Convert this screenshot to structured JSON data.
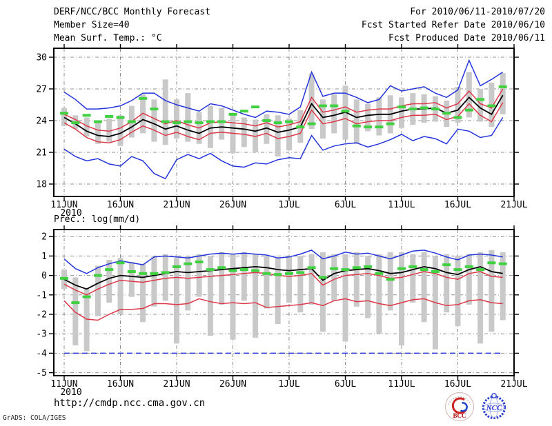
{
  "header": {
    "title": "DERF/NCC/BCC Monthly Forecast",
    "member_size": "Member Size=40",
    "for_range": "For 2010/06/11-2010/07/20",
    "fcst_started": "Fcst Started Refer Date 2010/06/10",
    "fcst_produced": "Fcst Produced Date 2010/06/11"
  },
  "footer": {
    "url": "http://cmdp.ncc.cma.gov.cn",
    "grads_credit": "GrADS: COLA/IGES",
    "logos": [
      {
        "name": "bcc-logo",
        "label": "BCC"
      },
      {
        "name": "ncc-logo",
        "label": "NCC"
      }
    ]
  },
  "chart_data": [
    {
      "name": "surface-temperature-forecast",
      "type": "line",
      "subtype": "ensemble-plume",
      "title": "Mean Surf. Temp.: °C",
      "grid": true,
      "ylim": [
        18,
        30
      ],
      "yticks": [
        18,
        21,
        24,
        27,
        30
      ],
      "x_tick_labels": [
        "11JUN",
        "16JUN",
        "21JUN",
        "26JUN",
        "1JUL",
        "6JUL",
        "11JUL",
        "16JUL",
        "21JUL"
      ],
      "year_label": "2010",
      "x_dates": [
        "06/11",
        "06/12",
        "06/13",
        "06/14",
        "06/15",
        "06/16",
        "06/17",
        "06/18",
        "06/19",
        "06/20",
        "06/21",
        "06/22",
        "06/23",
        "06/24",
        "06/25",
        "06/26",
        "06/27",
        "06/28",
        "06/29",
        "06/30",
        "07/01",
        "07/02",
        "07/03",
        "07/04",
        "07/05",
        "07/06",
        "07/07",
        "07/08",
        "07/09",
        "07/10",
        "07/11",
        "07/12",
        "07/13",
        "07/14",
        "07/15",
        "07/16",
        "07/17",
        "07/18",
        "07/19",
        "07/20"
      ],
      "bars": {
        "name": "ensemble-spread-bar",
        "color": "#c9c9c9",
        "ranges": [
          [
            23.5,
            25.2
          ],
          [
            23.2,
            24.5
          ],
          [
            22.5,
            24.3
          ],
          [
            21.8,
            24.0
          ],
          [
            22.0,
            24.2
          ],
          [
            21.6,
            24.5
          ],
          [
            22.4,
            25.4
          ],
          [
            22.8,
            26.5
          ],
          [
            22.0,
            26.0
          ],
          [
            21.7,
            27.9
          ],
          [
            22.3,
            26.0
          ],
          [
            22.0,
            26.6
          ],
          [
            21.8,
            24.8
          ],
          [
            21.4,
            25.4
          ],
          [
            22.2,
            25.2
          ],
          [
            20.9,
            24.6
          ],
          [
            21.5,
            24.3
          ],
          [
            21.0,
            24.1
          ],
          [
            21.8,
            24.6
          ],
          [
            20.6,
            24.5
          ],
          [
            21.2,
            24.2
          ],
          [
            21.9,
            25.0
          ],
          [
            23.2,
            28.4
          ],
          [
            22.3,
            26.0
          ],
          [
            22.8,
            26.5
          ],
          [
            22.2,
            27.3
          ],
          [
            21.8,
            26.0
          ],
          [
            23.0,
            25.6
          ],
          [
            22.6,
            26.2
          ],
          [
            22.8,
            26.4
          ],
          [
            23.3,
            26.2
          ],
          [
            23.6,
            26.6
          ],
          [
            23.8,
            26.5
          ],
          [
            23.9,
            26.3
          ],
          [
            23.4,
            25.9
          ],
          [
            23.8,
            27.2
          ],
          [
            24.3,
            28.6
          ],
          [
            23.9,
            27.0
          ],
          [
            23.4,
            27.6
          ],
          [
            24.6,
            28.5
          ]
        ]
      },
      "series": [
        {
          "name": "ensemble-max",
          "color": "#2334dd",
          "width": 1.5,
          "values": [
            26.7,
            26.0,
            25.1,
            25.1,
            25.2,
            25.4,
            25.9,
            26.6,
            26.6,
            25.9,
            25.5,
            25.2,
            24.9,
            25.6,
            25.4,
            25.0,
            24.6,
            24.3,
            24.9,
            24.8,
            24.6,
            25.3,
            28.6,
            26.3,
            26.6,
            26.6,
            26.2,
            25.7,
            26.0,
            27.3,
            26.8,
            27.0,
            27.2,
            26.6,
            26.2,
            26.9,
            29.7,
            27.3,
            27.9,
            28.6
          ]
        },
        {
          "name": "ensemble-min",
          "color": "#2334dd",
          "width": 1.5,
          "values": [
            21.3,
            20.6,
            20.2,
            20.4,
            19.9,
            19.7,
            20.6,
            20.2,
            19.0,
            18.5,
            20.3,
            20.8,
            20.4,
            20.9,
            20.2,
            19.7,
            19.6,
            20.0,
            19.9,
            20.3,
            20.5,
            20.4,
            22.6,
            21.2,
            21.6,
            21.8,
            21.9,
            21.5,
            21.8,
            22.2,
            22.7,
            22.1,
            22.5,
            22.3,
            21.8,
            23.2,
            23.0,
            22.4,
            22.6,
            24.3
          ]
        },
        {
          "name": "upper-spread",
          "color": "#dd3848",
          "width": 1.5,
          "values": [
            24.6,
            24.1,
            23.5,
            23.1,
            23.0,
            23.3,
            23.9,
            24.7,
            24.2,
            23.7,
            24.0,
            23.6,
            23.3,
            23.8,
            23.9,
            23.8,
            23.7,
            23.5,
            23.8,
            23.4,
            23.6,
            23.9,
            26.2,
            24.8,
            25.0,
            25.3,
            24.8,
            25.0,
            25.1,
            25.1,
            25.4,
            25.6,
            25.6,
            25.7,
            25.2,
            25.6,
            26.8,
            25.6,
            25.2,
            27.0
          ]
        },
        {
          "name": "lower-spread",
          "color": "#dd3848",
          "width": 1.5,
          "values": [
            23.8,
            23.2,
            22.4,
            22.0,
            21.9,
            22.2,
            22.9,
            23.5,
            23.1,
            22.6,
            22.9,
            22.5,
            22.2,
            22.8,
            22.9,
            22.8,
            22.7,
            22.5,
            22.8,
            22.3,
            22.5,
            22.8,
            25.0,
            23.7,
            23.9,
            24.2,
            23.7,
            23.9,
            24.0,
            24.0,
            24.3,
            24.5,
            24.5,
            24.6,
            24.1,
            24.4,
            25.6,
            24.5,
            23.9,
            25.7
          ]
        },
        {
          "name": "ensemble-mean",
          "color": "#000000",
          "width": 1.8,
          "values": [
            24.3,
            23.7,
            23.0,
            22.6,
            22.5,
            22.8,
            23.4,
            24.1,
            23.7,
            23.2,
            23.5,
            23.1,
            22.8,
            23.3,
            23.4,
            23.3,
            23.2,
            23.0,
            23.3,
            22.9,
            23.1,
            23.4,
            25.6,
            24.3,
            24.5,
            24.8,
            24.3,
            24.5,
            24.6,
            24.6,
            24.9,
            25.1,
            25.1,
            25.2,
            24.7,
            25.0,
            26.2,
            25.2,
            24.6,
            26.4
          ]
        },
        {
          "name": "observation",
          "style": "obs-dash",
          "color": "#3fd13f",
          "values": [
            24.7,
            23.8,
            24.5,
            23.9,
            24.4,
            24.3,
            23.9,
            26.1,
            25.1,
            23.9,
            23.8,
            23.9,
            23.8,
            23.9,
            23.9,
            24.6,
            24.9,
            25.3,
            24.0,
            23.8,
            23.9,
            23.4,
            23.7,
            25.4,
            25.4,
            24.9,
            23.5,
            23.4,
            23.4,
            23.7,
            25.3,
            25.1,
            25.2,
            25.1,
            24.7,
            24.3,
            25.0,
            26.0,
            25.4,
            27.2
          ]
        }
      ]
    },
    {
      "name": "precipitation-forecast",
      "type": "line",
      "subtype": "ensemble-plume",
      "title": "Prec.: log(mm/d)",
      "grid": true,
      "ylim": [
        -5,
        2
      ],
      "yticks": [
        -5,
        -4,
        -3,
        -2,
        -1,
        0,
        1,
        2
      ],
      "x_tick_labels": [
        "11JUN",
        "16JUN",
        "21JUN",
        "26JUN",
        "1JUL",
        "6JUL",
        "11JUL",
        "16JUL",
        "21JUL"
      ],
      "year_label": "2010",
      "x_dates": [
        "06/11",
        "06/12",
        "06/13",
        "06/14",
        "06/15",
        "06/16",
        "06/17",
        "06/18",
        "06/19",
        "06/20",
        "06/21",
        "06/22",
        "06/23",
        "06/24",
        "06/25",
        "06/26",
        "06/27",
        "06/28",
        "06/29",
        "06/30",
        "07/01",
        "07/02",
        "07/03",
        "07/04",
        "07/05",
        "07/06",
        "07/07",
        "07/08",
        "07/09",
        "07/10",
        "07/11",
        "07/12",
        "07/13",
        "07/14",
        "07/15",
        "07/16",
        "07/17",
        "07/18",
        "07/19",
        "07/20"
      ],
      "bars": {
        "name": "ensemble-spread-bar",
        "color": "#c9c9c9",
        "ranges": [
          [
            -0.7,
            0.3
          ],
          [
            -3.6,
            -0.1
          ],
          [
            -3.9,
            -0.7
          ],
          [
            -2.1,
            0.5
          ],
          [
            -1.4,
            0.8
          ],
          [
            -2.0,
            0.9
          ],
          [
            -1.1,
            0.7
          ],
          [
            -2.4,
            0.6
          ],
          [
            -1.6,
            1.0
          ],
          [
            -1.3,
            1.1
          ],
          [
            -3.5,
            0.9
          ],
          [
            -1.8,
            1.0
          ],
          [
            -1.1,
            1.1
          ],
          [
            -3.1,
            1.0
          ],
          [
            -1.5,
            1.2
          ],
          [
            -3.3,
            1.1
          ],
          [
            -1.3,
            1.2
          ],
          [
            -3.2,
            1.1
          ],
          [
            -1.7,
            1.0
          ],
          [
            -2.5,
            0.9
          ],
          [
            -1.4,
            1.0
          ],
          [
            -1.9,
            1.0
          ],
          [
            -1.5,
            1.1
          ],
          [
            -2.9,
            1.2
          ],
          [
            -1.3,
            1.1
          ],
          [
            -3.4,
            1.1
          ],
          [
            -1.6,
            1.2
          ],
          [
            -2.2,
            1.0
          ],
          [
            -3.0,
            1.1
          ],
          [
            -1.8,
            1.2
          ],
          [
            -3.6,
            1.2
          ],
          [
            -1.4,
            1.1
          ],
          [
            -2.4,
            1.2
          ],
          [
            -3.8,
            1.0
          ],
          [
            -1.9,
            1.1
          ],
          [
            -2.6,
            1.0
          ],
          [
            -1.5,
            1.1
          ],
          [
            -3.5,
            1.2
          ],
          [
            -2.9,
            1.3
          ],
          [
            -2.3,
            1.2
          ]
        ]
      },
      "series": [
        {
          "name": "ensemble-max",
          "color": "#2334dd",
          "width": 1.5,
          "values": [
            0.85,
            0.35,
            0.1,
            0.4,
            0.6,
            0.75,
            0.65,
            0.55,
            0.95,
            1.0,
            0.95,
            0.9,
            1.0,
            1.1,
            1.15,
            1.1,
            1.15,
            1.1,
            1.05,
            0.9,
            0.95,
            1.1,
            1.3,
            0.85,
            1.0,
            1.2,
            1.1,
            1.15,
            1.0,
            0.85,
            1.05,
            1.25,
            1.3,
            1.15,
            0.95,
            0.8,
            1.05,
            1.1,
            1.05,
            0.95
          ]
        },
        {
          "name": "ensemble-min",
          "color": "#2334dd",
          "width": 1.5,
          "dashed": true,
          "values": [
            -4.0,
            -4.0,
            -4.0,
            -4.0,
            -4.0,
            -4.0,
            -4.0,
            -4.0,
            -4.0,
            -4.0,
            -4.0,
            -4.0,
            -4.0,
            -4.0,
            -4.0,
            -4.0,
            -4.0,
            -4.0,
            -4.0,
            -4.0,
            -4.0,
            -4.0,
            -4.0,
            -4.0,
            -4.0,
            -4.0,
            -4.0,
            -4.0,
            -4.0,
            -4.0,
            -4.0,
            -4.0,
            -4.0,
            -4.0,
            -4.0,
            -4.0,
            -4.0,
            -4.0,
            -4.0,
            -4.0
          ]
        },
        {
          "name": "upper-spread",
          "color": "#dd3848",
          "width": 1.5,
          "values": [
            -0.45,
            -0.75,
            -1.0,
            -0.7,
            -0.45,
            -0.25,
            -0.3,
            -0.35,
            -0.25,
            -0.15,
            -0.1,
            -0.15,
            -0.1,
            -0.05,
            0.0,
            0.05,
            0.1,
            0.15,
            0.1,
            0.0,
            -0.05,
            0.0,
            0.1,
            -0.5,
            -0.2,
            0.0,
            0.05,
            0.1,
            0.0,
            -0.15,
            -0.1,
            0.05,
            0.2,
            0.1,
            -0.1,
            -0.2,
            0.1,
            0.2,
            -0.05,
            -0.1
          ]
        },
        {
          "name": "lower-spread",
          "color": "#dd3848",
          "width": 1.5,
          "values": [
            -1.3,
            -1.9,
            -2.25,
            -2.3,
            -2.0,
            -1.75,
            -1.75,
            -1.7,
            -1.45,
            -1.45,
            -1.5,
            -1.45,
            -1.2,
            -1.35,
            -1.45,
            -1.4,
            -1.45,
            -1.4,
            -1.65,
            -1.6,
            -1.55,
            -1.5,
            -1.4,
            -1.55,
            -1.3,
            -1.2,
            -1.35,
            -1.3,
            -1.45,
            -1.55,
            -1.4,
            -1.25,
            -1.2,
            -1.4,
            -1.55,
            -1.5,
            -1.3,
            -1.25,
            -1.4,
            -1.45
          ]
        },
        {
          "name": "ensemble-mean",
          "color": "#000000",
          "width": 1.8,
          "values": [
            -0.2,
            -0.5,
            -0.7,
            -0.4,
            -0.15,
            0.0,
            -0.05,
            -0.1,
            0.0,
            0.1,
            0.2,
            0.15,
            0.2,
            0.25,
            0.3,
            0.35,
            0.4,
            0.45,
            0.4,
            0.3,
            0.25,
            0.3,
            0.35,
            -0.25,
            0.1,
            0.25,
            0.3,
            0.35,
            0.25,
            0.1,
            0.15,
            0.3,
            0.45,
            0.35,
            0.15,
            0.05,
            0.3,
            0.45,
            0.2,
            0.1
          ]
        },
        {
          "name": "observation",
          "style": "obs-dash",
          "color": "#3fd13f",
          "values": [
            -0.15,
            -1.4,
            -1.1,
            0.0,
            0.3,
            0.65,
            0.2,
            0.1,
            0.1,
            0.15,
            0.45,
            0.6,
            0.7,
            0.3,
            0.4,
            0.25,
            0.3,
            0.25,
            0.1,
            0.05,
            0.1,
            0.15,
            0.4,
            -0.1,
            0.35,
            0.3,
            0.4,
            0.45,
            0.1,
            -0.2,
            0.35,
            0.45,
            0.3,
            0.2,
            0.55,
            0.3,
            0.45,
            0.3,
            0.65,
            0.6
          ]
        }
      ]
    }
  ]
}
